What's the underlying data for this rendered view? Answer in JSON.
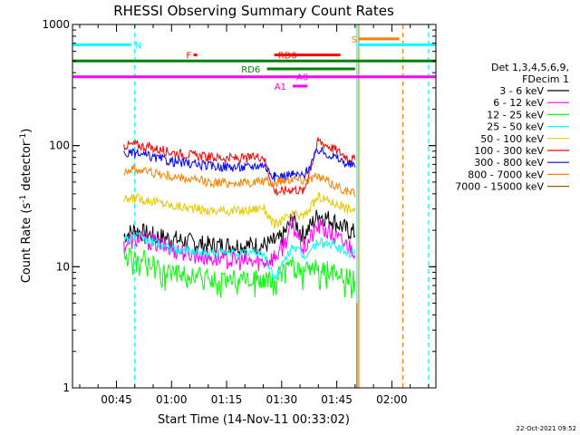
{
  "chart_data": {
    "type": "line",
    "title": "RHESSI Observing Summary Count Rates",
    "xlabel": "Start Time (14-Nov-11 00:33:02)",
    "ylabel_main": "Count Rate (s",
    "ylabel_sup1": "-1",
    "ylabel_mid": " detector",
    "ylabel_sup2": "-1",
    "ylabel_end": ")",
    "y_scale": "log",
    "ylim": [
      1,
      1000
    ],
    "xlim": [
      "00:33:02",
      "02:12:00"
    ],
    "y_ticks": [
      {
        "value": 1,
        "label": "1"
      },
      {
        "value": 10,
        "label": "10"
      },
      {
        "value": 100,
        "label": "100"
      },
      {
        "value": 1000,
        "label": "1000"
      }
    ],
    "x_ticks": [
      "00:45",
      "01:00",
      "01:15",
      "01:30",
      "01:45",
      "02:00"
    ],
    "legend": {
      "header": [
        "Det 1,3,4,5,6,9,",
        "FDecim 1"
      ],
      "position": "right",
      "entries": [
        {
          "label": "3 - 6 keV",
          "color": "#000000"
        },
        {
          "label": "6 - 12 keV",
          "color": "#ff00ff"
        },
        {
          "label": "12 - 25 keV",
          "color": "#00ff00"
        },
        {
          "label": "25 - 50 keV",
          "color": "#00ffff"
        },
        {
          "label": "50 - 100 keV",
          "color": "#e6c800"
        },
        {
          "label": "100 - 300 keV",
          "color": "#ff0000"
        },
        {
          "label": "300 - 800 keV",
          "color": "#0000ff"
        },
        {
          "label": "800 - 7000 keV",
          "color": "#ff8000"
        },
        {
          "label": "7000 - 15000 keV",
          "color": "#996600"
        }
      ]
    },
    "series": [
      {
        "name": "3 - 6 keV",
        "color": "#000000",
        "x": [
          "00:47",
          "00:50",
          "00:55",
          "01:00",
          "01:10",
          "01:20",
          "01:25",
          "01:28",
          "01:30",
          "01:33",
          "01:36",
          "01:40",
          "01:44",
          "01:48",
          "01:50"
        ],
        "values": [
          18,
          20,
          18,
          17,
          15,
          15,
          15,
          16,
          17,
          25,
          18,
          27,
          24,
          20,
          19
        ]
      },
      {
        "name": "6 - 12 keV",
        "color": "#ff00ff",
        "x": [
          "00:47",
          "00:50",
          "00:55",
          "01:00",
          "01:10",
          "01:20",
          "01:25",
          "01:28",
          "01:30",
          "01:33",
          "01:36",
          "01:40",
          "01:44",
          "01:48",
          "01:50"
        ],
        "values": [
          15,
          17,
          16,
          14,
          12,
          11,
          11,
          12,
          14,
          22,
          14,
          22,
          18,
          15,
          14
        ]
      },
      {
        "name": "12 - 25 keV",
        "color": "#00ff00",
        "x": [
          "00:47",
          "00:50",
          "00:55",
          "01:00",
          "01:10",
          "01:20",
          "01:25",
          "01:28",
          "01:30",
          "01:33",
          "01:36",
          "01:40",
          "01:44",
          "01:48",
          "01:50"
        ],
        "values": [
          12,
          12,
          11,
          9,
          8,
          8,
          8,
          8,
          9,
          11,
          9,
          10,
          9,
          8,
          8
        ]
      },
      {
        "name": "25 - 50 keV",
        "color": "#00ffff",
        "x": [
          "00:47",
          "00:50",
          "00:55",
          "01:00",
          "01:10",
          "01:20",
          "01:25",
          "01:28",
          "01:30",
          "01:33",
          "01:36",
          "01:40",
          "01:44",
          "01:48",
          "01:50"
        ],
        "values": [
          17,
          18,
          16,
          14,
          13,
          13,
          13,
          8,
          10,
          15,
          12,
          16,
          15,
          13,
          13
        ]
      },
      {
        "name": "50 - 100 keV",
        "color": "#e6c800",
        "x": [
          "00:47",
          "00:50",
          "00:55",
          "01:00",
          "01:10",
          "01:20",
          "01:25",
          "01:28",
          "01:30",
          "01:33",
          "01:36",
          "01:40",
          "01:44",
          "01:48",
          "01:50"
        ],
        "values": [
          35,
          37,
          35,
          32,
          29,
          29,
          31,
          22,
          24,
          27,
          26,
          38,
          34,
          30,
          30
        ]
      },
      {
        "name": "100 - 300 keV",
        "color": "#ff0000",
        "x": [
          "00:47",
          "00:50",
          "00:55",
          "01:00",
          "01:10",
          "01:20",
          "01:25",
          "01:28",
          "01:30",
          "01:33",
          "01:36",
          "01:40",
          "01:44",
          "01:48",
          "01:50"
        ],
        "values": [
          100,
          102,
          95,
          88,
          80,
          78,
          82,
          42,
          42,
          44,
          42,
          110,
          95,
          80,
          76
        ]
      },
      {
        "name": "300 - 800 keV",
        "color": "#0000ff",
        "x": [
          "00:47",
          "00:50",
          "00:55",
          "01:00",
          "01:10",
          "01:20",
          "01:25",
          "01:28",
          "01:30",
          "01:33",
          "01:36",
          "01:40",
          "01:44",
          "01:48",
          "01:50"
        ],
        "values": [
          85,
          86,
          80,
          74,
          68,
          66,
          70,
          55,
          56,
          58,
          56,
          92,
          82,
          70,
          68
        ]
      },
      {
        "name": "800 - 7000 keV",
        "color": "#ff8000",
        "x": [
          "00:47",
          "00:50",
          "00:55",
          "01:00",
          "01:10",
          "01:20",
          "01:25",
          "01:28",
          "01:30",
          "01:33",
          "01:36",
          "01:40",
          "01:44",
          "01:48",
          "01:50"
        ],
        "values": [
          62,
          64,
          60,
          55,
          50,
          49,
          51,
          48,
          52,
          54,
          52,
          55,
          48,
          42,
          40
        ]
      },
      {
        "name": "7000 - 15000 keV",
        "color": "#996600",
        "x": [
          "01:50.5",
          "01:50.5"
        ],
        "values": [
          1,
          5
        ]
      }
    ],
    "flags": [
      {
        "label": "N",
        "color": "#00ffff",
        "y": 680,
        "segments": [
          [
            "00:33:02",
            "00:49"
          ],
          [
            "01:51",
            "02:12"
          ]
        ],
        "label_at": "00:50"
      },
      {
        "label": "S",
        "color": "#ff8000",
        "y": 760,
        "segments": [
          [
            "01:51",
            "02:02"
          ]
        ],
        "label_at": "01:49"
      },
      {
        "label": "F",
        "color": "#ff0000",
        "y": 560,
        "segments": [
          [
            "01:06",
            "01:07"
          ]
        ],
        "label_at": "01:04"
      },
      {
        "label": "RD0",
        "color": "#ff0000",
        "y": 560,
        "segments": [
          [
            "01:28",
            "01:46"
          ]
        ],
        "label_at": "01:29"
      },
      {
        "label": "",
        "color": "#008000",
        "y": 500,
        "segments": [
          [
            "00:33:02",
            "02:12"
          ]
        ],
        "label_at": null
      },
      {
        "label": "RD6",
        "color": "#008000",
        "y": 430,
        "segments": [
          [
            "01:26",
            "01:50"
          ]
        ],
        "label_at": "01:19"
      },
      {
        "label": "A0",
        "color": "#ff00ff",
        "y": 370,
        "segments": [
          [
            "00:33:02",
            "02:12"
          ]
        ],
        "label_at": "01:34"
      },
      {
        "label": "A1",
        "color": "#ff00ff",
        "y": 310,
        "segments": [
          [
            "01:33",
            "01:37"
          ]
        ],
        "label_at": "01:28"
      }
    ],
    "vlines": [
      {
        "x": "00:50",
        "color": "#00ffff",
        "style": "dashed"
      },
      {
        "x": "01:50.5",
        "color": "#00ffff",
        "style": "solid"
      },
      {
        "x": "01:51",
        "color": "#ff8000",
        "style": "solid"
      },
      {
        "x": "02:03",
        "color": "#ff8000",
        "style": "dashed"
      },
      {
        "x": "02:10",
        "color": "#00ffff",
        "style": "dashed"
      }
    ],
    "grid": false
  },
  "footer_timestamp": "22-Oct-2021 09:52"
}
